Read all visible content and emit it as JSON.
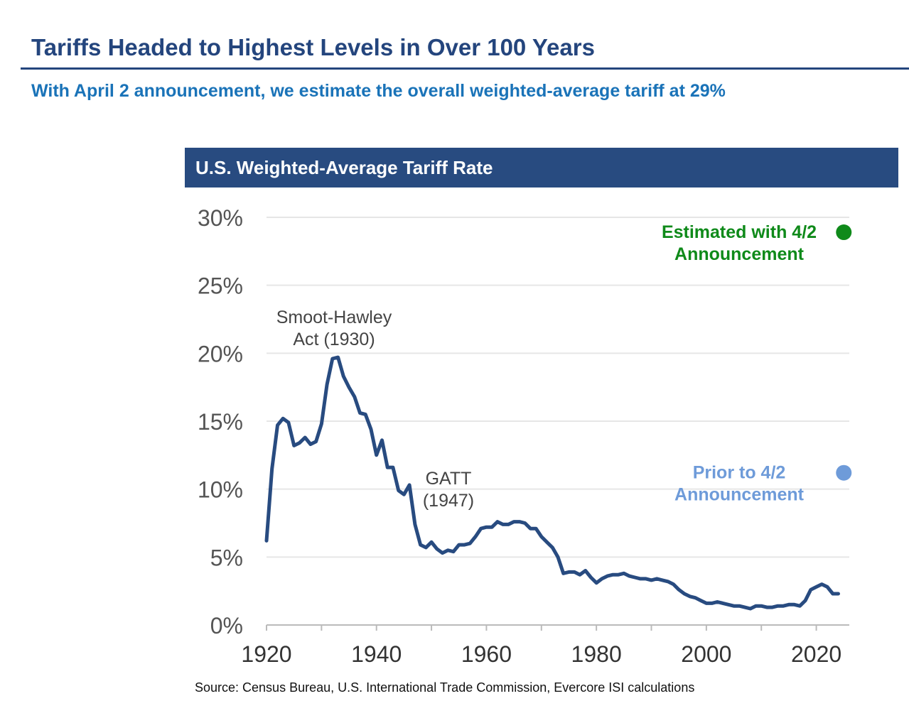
{
  "header": {
    "title": "Tariffs Headed to Highest Levels in Over 100 Years",
    "subtitle": "With April 2 announcement, we estimate the overall weighted-average tariff at 29%"
  },
  "source": "Source: Census Bureau, U.S. International Trade Commission, Evercore ISI calculations",
  "colors": {
    "brand": "#24457d",
    "subtitle": "#1a73b8",
    "header_bg": "#284b80",
    "line": "#284b80",
    "estimated": "#0f8a1a",
    "prior": "#6e9bd9",
    "grid": "#e6e6e6",
    "axis_text": "#555555"
  },
  "chart_data": {
    "type": "line",
    "title": "U.S. Weighted-Average Tariff Rate",
    "xlabel": "",
    "ylabel": "",
    "xlim": [
      1920,
      2026
    ],
    "ylim": [
      0,
      30
    ],
    "x_ticks": [
      1920,
      1940,
      1960,
      1980,
      2000,
      2020
    ],
    "y_ticks": [
      0,
      5,
      10,
      15,
      20,
      25,
      30
    ],
    "y_tick_labels": [
      "0%",
      "5%",
      "10%",
      "15%",
      "20%",
      "25%",
      "30%"
    ],
    "grid": "horizontal",
    "series": [
      {
        "name": "",
        "x": [
          1920,
          1921,
          1922,
          1923,
          1924,
          1925,
          1926,
          1927,
          1928,
          1929,
          1930,
          1931,
          1932,
          1933,
          1934,
          1935,
          1936,
          1937,
          1938,
          1939,
          1940,
          1941,
          1942,
          1943,
          1944,
          1945,
          1946,
          1947,
          1948,
          1949,
          1950,
          1951,
          1952,
          1953,
          1954,
          1955,
          1956,
          1957,
          1958,
          1959,
          1960,
          1961,
          1962,
          1963,
          1964,
          1965,
          1966,
          1967,
          1968,
          1969,
          1970,
          1971,
          1972,
          1973,
          1974,
          1975,
          1976,
          1977,
          1978,
          1979,
          1980,
          1981,
          1982,
          1983,
          1984,
          1985,
          1986,
          1987,
          1988,
          1989,
          1990,
          1991,
          1992,
          1993,
          1994,
          1995,
          1996,
          1997,
          1998,
          1999,
          2000,
          2001,
          2002,
          2003,
          2004,
          2005,
          2006,
          2007,
          2008,
          2009,
          2010,
          2011,
          2012,
          2013,
          2014,
          2015,
          2016,
          2017,
          2018,
          2019,
          2020,
          2021,
          2022,
          2023,
          2024
        ],
        "y": [
          6.2,
          11.5,
          14.7,
          15.2,
          14.9,
          13.2,
          13.4,
          13.8,
          13.3,
          13.5,
          14.8,
          17.7,
          19.6,
          19.7,
          18.3,
          17.5,
          16.8,
          15.6,
          15.5,
          14.4,
          12.5,
          13.6,
          11.6,
          11.6,
          9.9,
          9.6,
          10.3,
          7.4,
          5.9,
          5.7,
          6.1,
          5.6,
          5.3,
          5.5,
          5.4,
          5.9,
          5.9,
          6.0,
          6.5,
          7.1,
          7.2,
          7.2,
          7.6,
          7.4,
          7.4,
          7.6,
          7.6,
          7.5,
          7.1,
          7.1,
          6.5,
          6.1,
          5.7,
          5.0,
          3.8,
          3.9,
          3.9,
          3.7,
          4.0,
          3.5,
          3.1,
          3.4,
          3.6,
          3.7,
          3.7,
          3.8,
          3.6,
          3.5,
          3.4,
          3.4,
          3.3,
          3.4,
          3.3,
          3.2,
          3.0,
          2.6,
          2.3,
          2.1,
          2.0,
          1.8,
          1.6,
          1.6,
          1.7,
          1.6,
          1.5,
          1.4,
          1.4,
          1.3,
          1.2,
          1.4,
          1.4,
          1.3,
          1.3,
          1.4,
          1.4,
          1.5,
          1.5,
          1.4,
          1.8,
          2.6,
          2.8,
          3.0,
          2.8,
          2.3,
          2.3
        ]
      }
    ],
    "points": [
      {
        "x": 2025,
        "y": 28.9,
        "label": [
          "Estimated with 4/2",
          "Announcement"
        ],
        "color_key": "estimated"
      },
      {
        "x": 2025,
        "y": 11.2,
        "label": [
          "Prior to 4/2",
          "Announcement"
        ],
        "color_key": "prior"
      }
    ],
    "annotations": [
      {
        "lines": [
          "Smoot-Hawley",
          "Act (1930)"
        ]
      },
      {
        "lines": [
          "GATT",
          "(1947)"
        ]
      }
    ]
  }
}
